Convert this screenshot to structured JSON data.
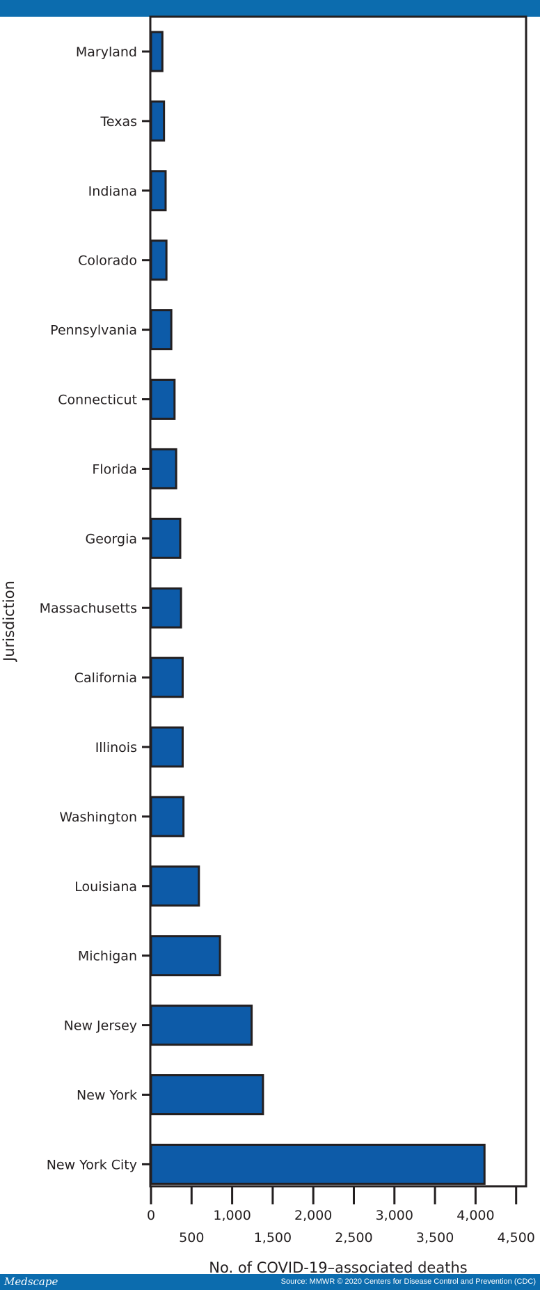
{
  "footer": {
    "brand": "Medscape",
    "source": "Source: MMWR © 2020 Centers for Disease Control and Prevention (CDC)"
  },
  "colors": {
    "header_bar": "#0c6cae",
    "bar_fill": "#0d5ba8",
    "bar_stroke": "#231f20"
  },
  "chart_data": {
    "type": "bar",
    "orientation": "horizontal",
    "categories": [
      "Maryland",
      "Texas",
      "Indiana",
      "Colorado",
      "Pennsylvania",
      "Connecticut",
      "Florida",
      "Georgia",
      "Massachusetts",
      "California",
      "Illinois",
      "Washington",
      "Louisiana",
      "Michigan",
      "New Jersey",
      "New York",
      "New York City"
    ],
    "values": [
      140,
      160,
      180,
      190,
      250,
      290,
      310,
      360,
      370,
      390,
      390,
      400,
      590,
      850,
      1240,
      1380,
      4110
    ],
    "xlabel": "No. of COVID-19–associated deaths",
    "ylabel": "Jurisdiction",
    "xlim": [
      0,
      4500
    ],
    "ticks": [
      {
        "value": 0,
        "label": "0"
      },
      {
        "value": 500,
        "label": "500"
      },
      {
        "value": 1000,
        "label": "1,000"
      },
      {
        "value": 1500,
        "label": "1,500"
      },
      {
        "value": 2000,
        "label": "2,000"
      },
      {
        "value": 2500,
        "label": "2,500"
      },
      {
        "value": 3000,
        "label": "3,000"
      },
      {
        "value": 3500,
        "label": "3,500"
      },
      {
        "value": 4000,
        "label": "4,000"
      },
      {
        "value": 4500,
        "label": "4,500"
      }
    ],
    "grid": false,
    "legend": "none"
  }
}
